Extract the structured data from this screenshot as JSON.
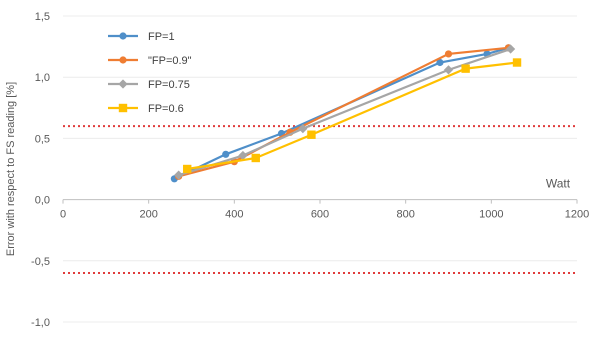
{
  "chart_data": {
    "type": "line",
    "title": "",
    "xlabel": "Watt",
    "ylabel": "Error with respect to FS reading [%]",
    "xlim": [
      0,
      1200
    ],
    "ylim": [
      -1.0,
      1.5
    ],
    "x_ticks": [
      "0",
      "200",
      "400",
      "600",
      "800",
      "1000",
      "1200"
    ],
    "y_ticks": [
      "1,5",
      "1,0",
      "0,5",
      "0,0",
      "-0,5",
      "-1,0"
    ],
    "grid": true,
    "legend_position": "top-left",
    "reference_lines": [
      0.6,
      -0.6
    ],
    "reference_line_color": "#e03b3b",
    "series": [
      {
        "name": "FP=1",
        "color": "#4f8fc9",
        "marker": "circle",
        "points": [
          [
            260,
            0.17
          ],
          [
            380,
            0.37
          ],
          [
            510,
            0.54
          ],
          [
            880,
            1.12
          ],
          [
            990,
            1.19
          ],
          [
            1040,
            1.24
          ]
        ]
      },
      {
        "name": "\"FP=0.9\"",
        "color": "#ef7d32",
        "marker": "circle",
        "points": [
          [
            270,
            0.19
          ],
          [
            400,
            0.31
          ],
          [
            530,
            0.55
          ],
          [
            900,
            1.19
          ],
          [
            1040,
            1.24
          ]
        ]
      },
      {
        "name": "FP=0.75",
        "color": "#a6a6a6",
        "marker": "diamond",
        "points": [
          [
            270,
            0.2
          ],
          [
            420,
            0.36
          ],
          [
            560,
            0.58
          ],
          [
            900,
            1.06
          ],
          [
            1045,
            1.23
          ]
        ]
      },
      {
        "name": "FP=0.6",
        "color": "#ffc000",
        "marker": "square",
        "points": [
          [
            290,
            0.25
          ],
          [
            450,
            0.34
          ],
          [
            580,
            0.53
          ],
          [
            940,
            1.07
          ],
          [
            1060,
            1.12
          ]
        ]
      }
    ]
  }
}
